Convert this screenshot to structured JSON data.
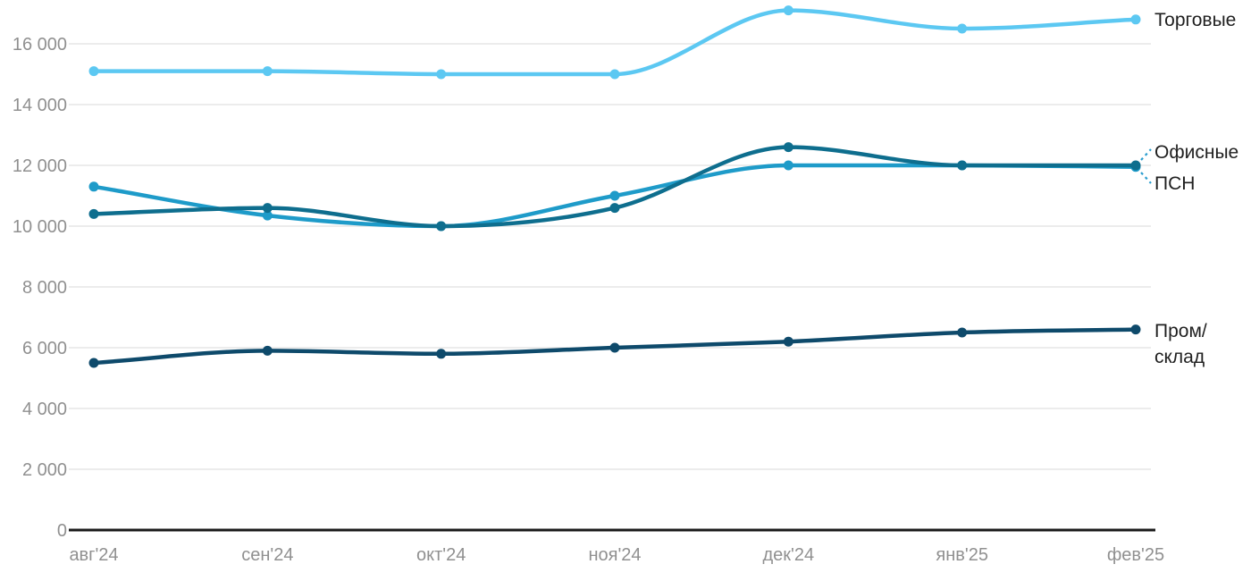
{
  "chart_data": {
    "type": "line",
    "title": "",
    "xlabel": "",
    "ylabel": "",
    "categories": [
      "авг'24",
      "сен'24",
      "окт'24",
      "ноя'24",
      "дек'24",
      "янв'25",
      "фев'25"
    ],
    "y_ticks": [
      0,
      2000,
      4000,
      6000,
      8000,
      10000,
      12000,
      14000,
      16000
    ],
    "y_tick_labels": [
      "0",
      "2 000",
      "4 000",
      "6 000",
      "8 000",
      "10 000",
      "12 000",
      "14 000",
      "16 000"
    ],
    "ylim": [
      0,
      17600
    ],
    "grid": "horizontal",
    "legend_position": "right-of-line-endpoints",
    "series": [
      {
        "name": "Торговые",
        "color": "#5CC8F2",
        "values": [
          15100,
          15100,
          15000,
          15000,
          17100,
          16500,
          16800
        ]
      },
      {
        "name": "Офисные",
        "color": "#0E6E8E",
        "values": [
          10400,
          10600,
          10000,
          10600,
          12600,
          12000,
          12000
        ]
      },
      {
        "name": "ПСН",
        "color": "#1E9BC9",
        "values": [
          11300,
          10350,
          10000,
          11000,
          12000,
          12000,
          11950
        ]
      },
      {
        "name": "Пром/склад",
        "color": "#0E4A6B",
        "values": [
          5500,
          5900,
          5800,
          6000,
          6200,
          6500,
          6600
        ]
      }
    ]
  },
  "labels": {
    "trade": "Торговые",
    "office": "Офисные",
    "psn": "ПСН",
    "prom_line1": "Пром/",
    "prom_line2": "склад"
  },
  "colors": {
    "grid": "#e5e5e5",
    "axis": "#1a1a1a",
    "tick_text": "#909090",
    "label_text": "#1f1f1f",
    "connector": "#2a9dcf",
    "background": "#ffffff"
  }
}
